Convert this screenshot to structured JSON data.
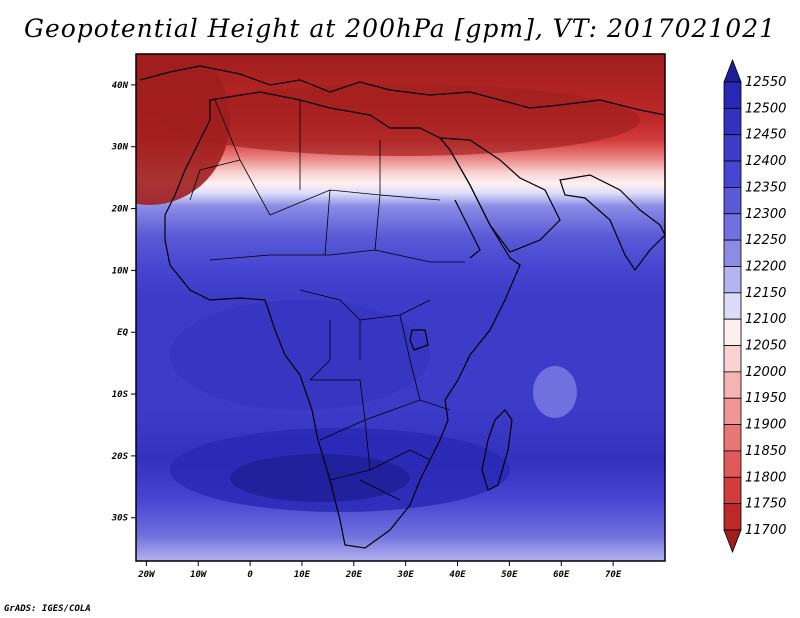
{
  "title": "Geopotential Height at 200hPa [gpm], VT: 2017021021",
  "credit": "GrADS: IGES/COLA",
  "lat_ticks": [
    "40N",
    "30N",
    "20N",
    "10N",
    "EQ",
    "10S",
    "20S",
    "30S"
  ],
  "lat_values": [
    40,
    30,
    20,
    10,
    0,
    -10,
    -20,
    -30
  ],
  "lon_ticks": [
    "20W",
    "10W",
    "0",
    "10E",
    "20E",
    "30E",
    "40E",
    "50E",
    "60E",
    "70E"
  ],
  "lon_values": [
    -20,
    -10,
    0,
    10,
    20,
    30,
    40,
    50,
    60,
    70
  ],
  "extent": {
    "lon_min": -22,
    "lon_max": 80,
    "lat_min": -37,
    "lat_max": 45
  },
  "colorbar": {
    "levels": [
      "12550",
      "12500",
      "12450",
      "12400",
      "12350",
      "12300",
      "12250",
      "12200",
      "12150",
      "12100",
      "12050",
      "12000",
      "11950",
      "11900",
      "11850",
      "11800",
      "11750",
      "11700"
    ],
    "colors": [
      "#1e1e96",
      "#2828b4",
      "#3232be",
      "#3c3cc8",
      "#4646d2",
      "#5a5ad7",
      "#7070de",
      "#8c8ce6",
      "#b4b4f0",
      "#dcdcfa",
      "#fff0f0",
      "#fad2d2",
      "#f5b4b4",
      "#f09696",
      "#e87878",
      "#e05a5a",
      "#d23c3c",
      "#be2828",
      "#a01e1e"
    ]
  },
  "chart_data": {
    "type": "heatmap",
    "title": "Geopotential Height at 200hPa [gpm], VT: 2017021021",
    "variable": "Geopotential Height at 200hPa",
    "units": "gpm",
    "valid_time": "2017021021",
    "region": "Africa",
    "lon_range": [
      -22,
      80
    ],
    "lat_range": [
      -37,
      45
    ],
    "contour_levels": [
      11700,
      11750,
      11800,
      11850,
      11900,
      11950,
      12000,
      12050,
      12100,
      12150,
      12200,
      12250,
      12300,
      12350,
      12400,
      12450,
      12500,
      12550
    ],
    "features": [
      {
        "lat": 42,
        "lon": 30,
        "approx_value": 11650
      },
      {
        "lat": 33,
        "lon": 30,
        "approx_value": 11850
      },
      {
        "lat": 25,
        "lon": 30,
        "approx_value": 12100
      },
      {
        "lat": 20,
        "lon": 30,
        "approx_value": 12300
      },
      {
        "lat": 10,
        "lon": 30,
        "approx_value": 12420
      },
      {
        "lat": 0,
        "lon": 25,
        "approx_value": 12460
      },
      {
        "lat": -20,
        "lon": 15,
        "approx_value": 12500
      },
      {
        "lat": -10,
        "lon": 60,
        "approx_value": 12320
      },
      {
        "lat": -35,
        "lon": 30,
        "approx_value": 12300
      }
    ]
  }
}
